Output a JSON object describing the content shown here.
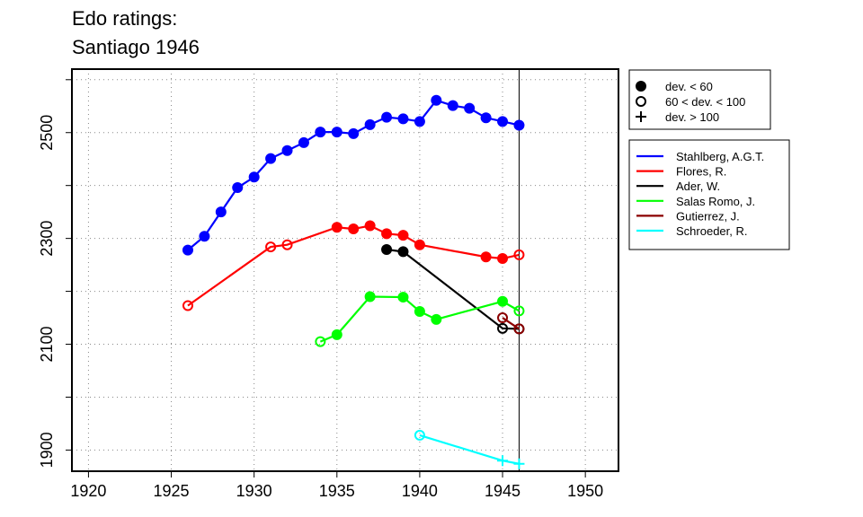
{
  "chart_data": {
    "type": "line",
    "title": "Edo ratings:",
    "subtitle": "Santiago 1946",
    "xlabel": "",
    "ylabel": "",
    "xlim": [
      1919,
      1952
    ],
    "ylim": [
      1860,
      2620
    ],
    "x_ticks": [
      1920,
      1925,
      1930,
      1935,
      1940,
      1945,
      1950
    ],
    "y_ticks": [
      1900,
      2100,
      2300,
      2500
    ],
    "y_grid": [
      1900,
      2000,
      2100,
      2200,
      2300,
      2400,
      2500,
      2600
    ],
    "grid": true,
    "vline": 1946,
    "legend_placement": "right",
    "symbol_legend": [
      {
        "symbol": "filled",
        "label": "dev. < 60"
      },
      {
        "symbol": "open",
        "label": "60 < dev. < 100"
      },
      {
        "symbol": "plus",
        "label": "dev. > 100"
      }
    ],
    "series": [
      {
        "name": "Stahlberg, A.G.T.",
        "color": "#0000ff",
        "points": [
          {
            "x": 1926,
            "y": 2278,
            "s": "filled"
          },
          {
            "x": 1927,
            "y": 2304,
            "s": "filled"
          },
          {
            "x": 1928,
            "y": 2350,
            "s": "filled"
          },
          {
            "x": 1929,
            "y": 2396,
            "s": "filled"
          },
          {
            "x": 1930,
            "y": 2416,
            "s": "filled"
          },
          {
            "x": 1931,
            "y": 2451,
            "s": "filled"
          },
          {
            "x": 1932,
            "y": 2466,
            "s": "filled"
          },
          {
            "x": 1933,
            "y": 2481,
            "s": "filled"
          },
          {
            "x": 1934,
            "y": 2501,
            "s": "filled"
          },
          {
            "x": 1935,
            "y": 2501,
            "s": "filled"
          },
          {
            "x": 1936,
            "y": 2498,
            "s": "filled"
          },
          {
            "x": 1937,
            "y": 2515,
            "s": "filled"
          },
          {
            "x": 1938,
            "y": 2529,
            "s": "filled"
          },
          {
            "x": 1939,
            "y": 2526,
            "s": "filled"
          },
          {
            "x": 1940,
            "y": 2521,
            "s": "filled"
          },
          {
            "x": 1941,
            "y": 2561,
            "s": "filled"
          },
          {
            "x": 1942,
            "y": 2551,
            "s": "filled"
          },
          {
            "x": 1943,
            "y": 2546,
            "s": "filled"
          },
          {
            "x": 1944,
            "y": 2528,
            "s": "filled"
          },
          {
            "x": 1945,
            "y": 2521,
            "s": "filled"
          },
          {
            "x": 1946,
            "y": 2514,
            "s": "filled"
          }
        ]
      },
      {
        "name": "Flores, R.",
        "color": "#ff0000",
        "points": [
          {
            "x": 1926,
            "y": 2173,
            "s": "open"
          },
          {
            "x": 1931,
            "y": 2284,
            "s": "open"
          },
          {
            "x": 1932,
            "y": 2288,
            "s": "open"
          },
          {
            "x": 1935,
            "y": 2321,
            "s": "filled"
          },
          {
            "x": 1936,
            "y": 2318,
            "s": "filled"
          },
          {
            "x": 1937,
            "y": 2324,
            "s": "filled"
          },
          {
            "x": 1938,
            "y": 2309,
            "s": "filled"
          },
          {
            "x": 1939,
            "y": 2306,
            "s": "filled"
          },
          {
            "x": 1940,
            "y": 2288,
            "s": "filled"
          },
          {
            "x": 1944,
            "y": 2265,
            "s": "filled"
          },
          {
            "x": 1945,
            "y": 2262,
            "s": "filled"
          },
          {
            "x": 1946,
            "y": 2269,
            "s": "open"
          }
        ]
      },
      {
        "name": "Ader, W.",
        "color": "#000000",
        "points": [
          {
            "x": 1938,
            "y": 2279,
            "s": "filled"
          },
          {
            "x": 1939,
            "y": 2275,
            "s": "filled"
          },
          {
            "x": 1945,
            "y": 2130,
            "s": "open"
          },
          {
            "x": 1946,
            "y": 2129,
            "s": "open"
          }
        ]
      },
      {
        "name": "Salas Romo, J.",
        "color": "#00ff00",
        "points": [
          {
            "x": 1934,
            "y": 2105,
            "s": "open"
          },
          {
            "x": 1935,
            "y": 2118,
            "s": "filled"
          },
          {
            "x": 1937,
            "y": 2190,
            "s": "filled"
          },
          {
            "x": 1939,
            "y": 2189,
            "s": "filled"
          },
          {
            "x": 1940,
            "y": 2162,
            "s": "filled"
          },
          {
            "x": 1941,
            "y": 2147,
            "s": "filled"
          },
          {
            "x": 1945,
            "y": 2181,
            "s": "filled"
          },
          {
            "x": 1946,
            "y": 2163,
            "s": "open"
          }
        ]
      },
      {
        "name": "Gutierrez, J.",
        "color": "#8b0000",
        "points": [
          {
            "x": 1945,
            "y": 2150,
            "s": "open"
          },
          {
            "x": 1946,
            "y": 2129,
            "s": "open"
          }
        ]
      },
      {
        "name": "Schroeder, R.",
        "color": "#00ffff",
        "points": [
          {
            "x": 1940,
            "y": 1928,
            "s": "open"
          },
          {
            "x": 1945,
            "y": 1880,
            "s": "plus"
          },
          {
            "x": 1946,
            "y": 1874,
            "s": "plus"
          }
        ]
      }
    ]
  }
}
